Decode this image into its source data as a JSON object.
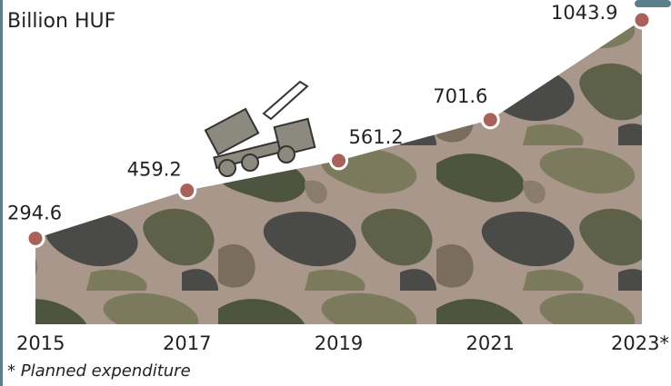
{
  "chart_data": {
    "type": "area",
    "y_label": "Billion HUF",
    "categories": [
      "2015",
      "2017",
      "2019",
      "2021",
      "2023*"
    ],
    "values": [
      294.6,
      459.2,
      561.2,
      701.6,
      1043.9
    ],
    "marker_color": "#a9625a",
    "ylim": [
      0,
      1100
    ],
    "footnote": "* Planned expenditure"
  }
}
